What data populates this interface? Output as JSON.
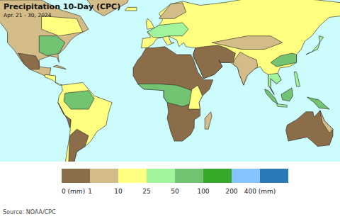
{
  "chart_data": {
    "type": "map",
    "title": "Precipitation 10-Day (CPC)",
    "subtitle": "Apr. 21 - 30, 2024",
    "source": "Source: NOAA/CPC",
    "colorbar": {
      "ticks": [
        {
          "value": 0,
          "label": "0 (mm)"
        },
        1,
        10,
        25,
        50,
        100,
        200,
        {
          "value": 400,
          "label": "400 (mm)"
        }
      ],
      "colors": [
        "#8b6d4a",
        "#d4bc88",
        "#ffff80",
        "#a0f59c",
        "#72c472",
        "#38a82a",
        "#86c4ff",
        "#2a7ab8"
      ]
    },
    "cells": [
      5,
      5,
      10,
      15,
      60,
      0.5,
      20,
      3,
      15,
      80,
      0.5,
      0.5,
      15,
      40,
      20,
      5,
      0.5,
      5,
      3,
      60,
      40,
      40,
      30,
      0.5,
      60,
      20,
      3,
      80,
      80,
      40,
      80,
      0.5,
      3
    ]
  }
}
